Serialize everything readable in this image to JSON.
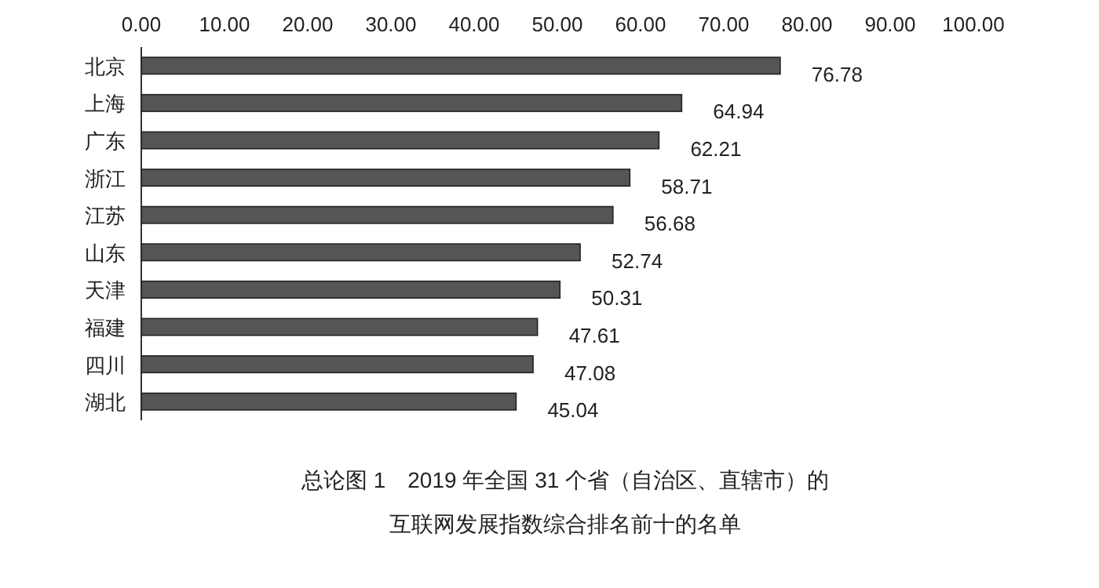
{
  "chart_data": {
    "type": "bar",
    "orientation": "horizontal",
    "title": "总论图 1　2019 年全国 31 个省（自治区、直辖市）的互联网发展指数综合排名前十的名单",
    "categories": [
      "北京",
      "上海",
      "广东",
      "浙江",
      "江苏",
      "山东",
      "天津",
      "福建",
      "四川",
      "湖北"
    ],
    "values": [
      76.78,
      64.94,
      62.21,
      58.71,
      56.68,
      52.74,
      50.31,
      47.61,
      47.08,
      45.04
    ],
    "color": "#555555",
    "xlim": [
      0,
      100
    ],
    "xticks": [
      {
        "value": 0,
        "label": "0.00"
      },
      {
        "value": 10,
        "label": "10.00"
      },
      {
        "value": 20,
        "label": "20.00"
      },
      {
        "value": 30,
        "label": "30.00"
      },
      {
        "value": 40,
        "label": "40.00"
      },
      {
        "value": 50,
        "label": "50.00"
      },
      {
        "value": 60,
        "label": "60.00"
      },
      {
        "value": 70,
        "label": "70.00"
      },
      {
        "value": 80,
        "label": "80.00"
      },
      {
        "value": 90,
        "label": "90.00"
      },
      {
        "value": 100,
        "label": "100.00"
      }
    ],
    "data_labels": true
  }
}
